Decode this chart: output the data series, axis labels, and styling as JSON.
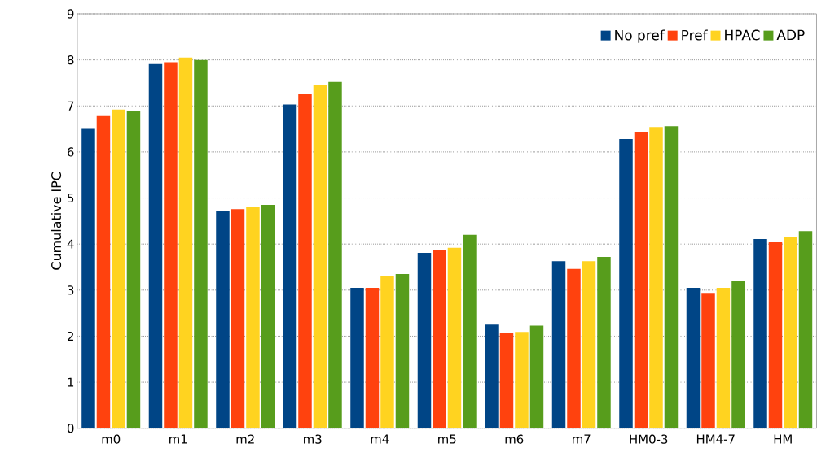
{
  "chart_data": {
    "type": "bar",
    "ylabel": "Cumulative IPC",
    "categories": [
      "m0",
      "m1",
      "m2",
      "m3",
      "m4",
      "m5",
      "m6",
      "m7",
      "HM0-3",
      "HM4-7",
      "HM"
    ],
    "series": [
      {
        "name": "No pref",
        "color": "#004586",
        "values": [
          6.5,
          7.91,
          4.71,
          7.03,
          3.05,
          3.81,
          2.25,
          3.63,
          6.28,
          3.05,
          4.11
        ]
      },
      {
        "name": "Pref",
        "color": "#ff420e",
        "values": [
          6.78,
          7.95,
          4.76,
          7.26,
          3.05,
          3.88,
          2.06,
          3.46,
          6.44,
          2.94,
          4.04
        ]
      },
      {
        "name": "HPAC",
        "color": "#ffd320",
        "values": [
          6.92,
          8.05,
          4.81,
          7.45,
          3.31,
          3.92,
          2.09,
          3.63,
          6.54,
          3.05,
          4.16
        ]
      },
      {
        "name": "ADP",
        "color": "#579d1c",
        "values": [
          6.9,
          8.0,
          4.85,
          7.52,
          3.35,
          4.2,
          2.23,
          3.72,
          6.56,
          3.19,
          4.28
        ]
      }
    ],
    "ylim": [
      0,
      9
    ],
    "yticks": [
      0,
      1,
      2,
      3,
      4,
      5,
      6,
      7,
      8,
      9
    ],
    "grid": "y",
    "legend": "top right"
  }
}
